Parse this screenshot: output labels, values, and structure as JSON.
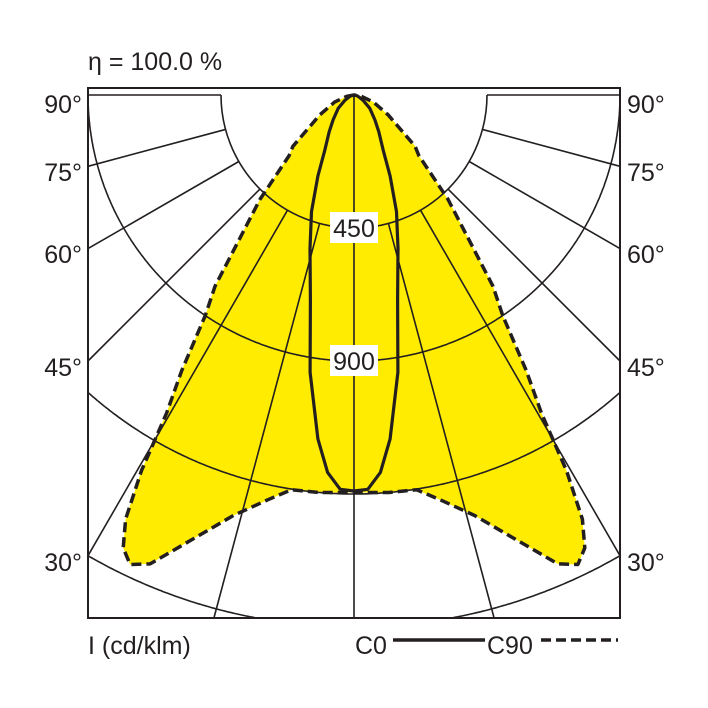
{
  "chart_data": {
    "type": "polar",
    "title": "η = 100.0 %",
    "unit_label": "I (cd/klm)",
    "angle_labels": [
      "90°",
      "75°",
      "60°",
      "45°",
      "30°"
    ],
    "radial_ticks": [
      450,
      900,
      1350,
      1800
    ],
    "radial_tick_labels": [
      "450",
      "900"
    ],
    "angles_deg": [
      0,
      15,
      30,
      45,
      60,
      75,
      90
    ],
    "fill_color": "#ffec00",
    "legend": [
      {
        "name": "C0",
        "style": "solid"
      },
      {
        "name": "C90",
        "style": "dashed"
      }
    ],
    "series": [
      {
        "name": "C0",
        "style": "solid",
        "gamma": [
          0,
          2,
          4,
          6,
          9,
          12,
          16,
          20,
          24,
          28,
          34,
          40,
          50,
          60,
          75,
          90
        ],
        "values": [
          1340,
          1335,
          1280,
          1170,
          950,
          710,
          540,
          420,
          300,
          210,
          150,
          110,
          70,
          35,
          12,
          0
        ]
      },
      {
        "name": "C90",
        "style": "dashed",
        "filled": true,
        "gamma": [
          0,
          5,
          9,
          12,
          16,
          20,
          23.5,
          25.5,
          27,
          28.3,
          29.5,
          30.5,
          32,
          34,
          36,
          42,
          47,
          50,
          60,
          70,
          80,
          90
        ],
        "values": [
          1345,
          1350,
          1352,
          1400,
          1480,
          1600,
          1730,
          1760,
          1720,
          1630,
          1460,
          1250,
          1100,
          900,
          800,
          476,
          300,
          270,
          133,
          70,
          25,
          0
        ]
      }
    ]
  }
}
